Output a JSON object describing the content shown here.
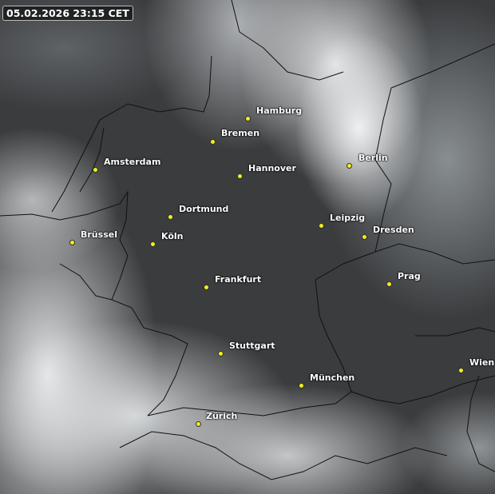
{
  "timestamp": "05.02.2026 23:15 CET",
  "colors": {
    "city_dot": "#f2ee1c",
    "label": "#ffffff"
  },
  "cities": [
    {
      "name": "Hamburg"
    },
    {
      "name": "Bremen"
    },
    {
      "name": "Amsterdam"
    },
    {
      "name": "Hannover"
    },
    {
      "name": "Berlin"
    },
    {
      "name": "Dortmund"
    },
    {
      "name": "Leipzig"
    },
    {
      "name": "Dresden"
    },
    {
      "name": "Brüssel"
    },
    {
      "name": "Köln"
    },
    {
      "name": "Prag"
    },
    {
      "name": "Frankfurt"
    },
    {
      "name": "Stuttgart"
    },
    {
      "name": "Wien"
    },
    {
      "name": "München"
    },
    {
      "name": "Zürich"
    }
  ]
}
